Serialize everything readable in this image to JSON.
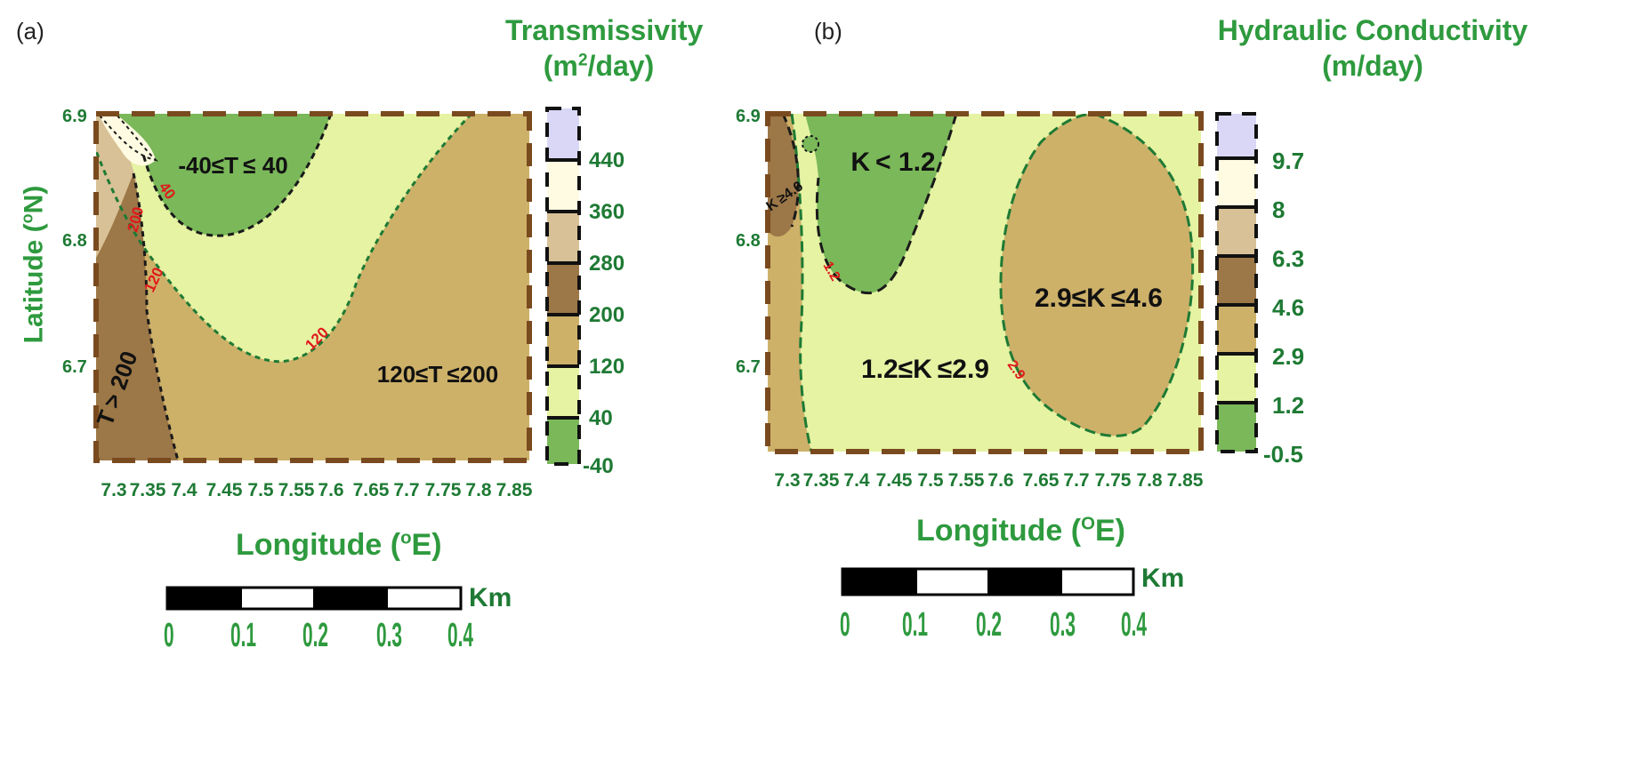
{
  "panels": [
    {
      "tag": "(a)",
      "colorbar_title_line1": "Transmissivity",
      "colorbar_title_line2_pre": "(m",
      "colorbar_title_line2_sup": "2",
      "colorbar_title_line2_post": "/day)",
      "colorbar_ticks": [
        "440",
        "360",
        "280",
        "200",
        "120",
        "40",
        "-40"
      ],
      "ylabel": "Latitude (°N)",
      "ylabel_text": "Latitude (",
      "ylabel_sup": "o",
      "ylabel_post": "N)",
      "xlabel_pre": "Longitude (",
      "xlabel_sup": "o",
      "xlabel_post": "E)",
      "yticks": [
        "6.9",
        "6.8",
        "6.7"
      ],
      "xticks": [
        "7.3",
        "7.35",
        "7.4",
        "7.45",
        "7.5",
        "7.55",
        "7.6",
        "7.65",
        "7.7",
        "7.75",
        "7.8",
        "7.85"
      ],
      "region_labels": [
        "-40≤T ≤ 40",
        "120≤T ≤200",
        "T > 200"
      ],
      "contour_labels": [
        "40",
        "200",
        "120",
        "120"
      ],
      "scalebar_unit": "Km",
      "scalebar_ticks": [
        "0",
        "0.1",
        "0.2",
        "0.3",
        "0.4"
      ]
    },
    {
      "tag": "(b)",
      "colorbar_title_line1": "Hydraulic Conductivity",
      "colorbar_title_line2": "(m/day)",
      "colorbar_ticks": [
        "9.7",
        "8",
        "6.3",
        "4.6",
        "2.9",
        "1.2",
        "-0.5"
      ],
      "ylabel_text": "Latitude (",
      "ylabel_sup": "O",
      "ylabel_post": "N)",
      "xlabel_pre": "Longitude (",
      "xlabel_sup": "O",
      "xlabel_post": "E)",
      "yticks": [
        "6.9",
        "6.8",
        "6.7"
      ],
      "xticks": [
        "7.3",
        "7.35",
        "7.4",
        "7.45",
        "7.5",
        "7.55",
        "7.6",
        "7.65",
        "7.7",
        "7.75",
        "7.8",
        "7.85"
      ],
      "region_labels": [
        "K < 1.2",
        "1.2≤K ≤2.9",
        "2.9≤K ≤4.6",
        "K ≥4.6"
      ],
      "contour_labels": [
        "1.2",
        "2.9"
      ],
      "scalebar_unit": "Km",
      "scalebar_ticks": [
        "0",
        "0.1",
        "0.2",
        "0.3",
        "0.4"
      ]
    }
  ],
  "colors": {
    "green_dark": "#7ab85a",
    "green_light": "#e5f3a3",
    "tan": "#cdb169",
    "brown": "#9c7747",
    "beige": "#d8c196",
    "cream": "#fffbe2",
    "lavender": "#d9d7f5",
    "label_green": "#2e9a3e",
    "contour_red": "#e0191b"
  }
}
